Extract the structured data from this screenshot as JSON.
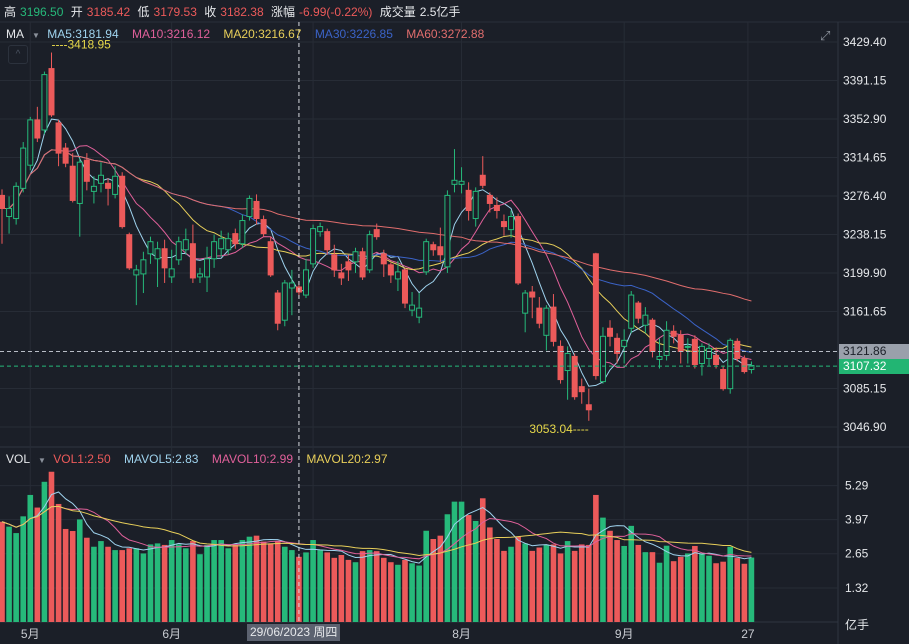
{
  "header": {
    "high_label": "高",
    "high": "3196.50",
    "open_label": "开",
    "open": "3185.42",
    "low_label": "低",
    "low": "3179.53",
    "close_label": "收",
    "close": "3182.38",
    "change_label": "涨幅",
    "change": "-6.99(-0.22%)",
    "volume_label": "成交量",
    "volume": "2.5亿手"
  },
  "ma_row": {
    "label": "MA",
    "ma5": "MA5:3181.94",
    "ma10": "MA10:3216.12",
    "ma20": "MA20:3216.67",
    "ma30": "MA30:3226.85",
    "ma60": "MA60:3272.88"
  },
  "vol_row": {
    "label": "VOL",
    "vol1": "VOL1:2.50",
    "mavol5": "MAVOL5:2.83",
    "mavol10": "MAVOL10:2.99",
    "mavol20": "MAVOL20:2.97"
  },
  "colors": {
    "up": "#26b97a",
    "down": "#ec5a5a",
    "ma5": "#9fd3ee",
    "ma10": "#e0609a",
    "ma20": "#e8cf5a",
    "ma30": "#3b63c7",
    "ma60": "#e06d6d",
    "annotation": "#e6d84a"
  },
  "crosshair_date": "29/06/2023 周四",
  "price_tags": {
    "last": "3121.86",
    "current": "3107.32"
  },
  "annotations": {
    "max": "----3418.95",
    "min": "3053.04----"
  },
  "volume_unit": "亿手",
  "chart_data": {
    "type": "candlestick",
    "ohlc_format": [
      "open",
      "high",
      "low",
      "close"
    ],
    "price_ticks": [
      "3429.40",
      "3391.15",
      "3352.90",
      "3314.65",
      "3276.40",
      "3238.15",
      "3199.90",
      "3161.65",
      "3121.86",
      "3085.15",
      "3046.90"
    ],
    "price_axis_ticks": [
      3429.4,
      3391.15,
      3352.9,
      3314.65,
      3276.4,
      3238.15,
      3199.9,
      3161.65,
      3085.15,
      3046.9
    ],
    "price_axis_labels": [
      "3429.40",
      "3391.15",
      "3352.90",
      "3314.65",
      "3276.40",
      "3238.15",
      "3199.90",
      "3161.65",
      "3085.15",
      "3046.90"
    ],
    "volume_axis_ticks": [
      5.29,
      3.97,
      2.65,
      1.32
    ],
    "volume_axis_labels": [
      "5.29",
      "3.97",
      "2.65",
      "1.32"
    ],
    "x_ticks": [
      {
        "label": "5月",
        "index": 4
      },
      {
        "label": "6月",
        "index": 24
      },
      {
        "label": "8月",
        "index": 65
      },
      {
        "label": "9月",
        "index": 88
      },
      {
        "label": "27",
        "index": 105.5
      }
    ],
    "july_gridline_index": 44,
    "crosshair_index": 42,
    "last_price": 3121.86,
    "current_price": 3107.32,
    "max_price": 3418.95,
    "min_price": 3053.04,
    "candles": [
      [
        3277,
        3283,
        3229,
        3264
      ],
      [
        3256,
        3276,
        3239,
        3264
      ],
      [
        3254,
        3290,
        3248,
        3286
      ],
      [
        3284,
        3330,
        3280,
        3324
      ],
      [
        3307,
        3355,
        3302,
        3352
      ],
      [
        3352,
        3365,
        3330,
        3334
      ],
      [
        3342,
        3400,
        3338,
        3397
      ],
      [
        3403,
        3418.95,
        3355,
        3357
      ],
      [
        3349,
        3352,
        3306,
        3319
      ],
      [
        3324,
        3329,
        3305,
        3309
      ],
      [
        3306,
        3319,
        3270,
        3272
      ],
      [
        3269,
        3314,
        3236,
        3310
      ],
      [
        3312,
        3319,
        3282,
        3291
      ],
      [
        3281,
        3296,
        3269,
        3286
      ],
      [
        3289,
        3310,
        3280,
        3297
      ],
      [
        3289,
        3294,
        3267,
        3284
      ],
      [
        3278,
        3306,
        3274,
        3296
      ],
      [
        3296,
        3300,
        3244,
        3246
      ],
      [
        3238,
        3240,
        3203,
        3205
      ],
      [
        3198,
        3208,
        3168,
        3203
      ],
      [
        3199,
        3221,
        3180,
        3213
      ],
      [
        3219,
        3236,
        3209,
        3231
      ],
      [
        3214,
        3231,
        3186,
        3224
      ],
      [
        3224,
        3233,
        3190,
        3205
      ],
      [
        3196,
        3223,
        3190,
        3204
      ],
      [
        3213,
        3236,
        3208,
        3231
      ],
      [
        3223,
        3244,
        3218,
        3233
      ],
      [
        3229,
        3248,
        3190,
        3195
      ],
      [
        3196,
        3205,
        3190,
        3199
      ],
      [
        3196,
        3226,
        3181,
        3214
      ],
      [
        3214,
        3238,
        3205,
        3231
      ],
      [
        3224,
        3242,
        3216,
        3234
      ],
      [
        3223,
        3240,
        3218,
        3234
      ],
      [
        3239,
        3244,
        3224,
        3229
      ],
      [
        3229,
        3258,
        3225,
        3252
      ],
      [
        3256,
        3277,
        3252,
        3274
      ],
      [
        3271,
        3278,
        3248,
        3254
      ],
      [
        3253,
        3257,
        3236,
        3239
      ],
      [
        3231,
        3236,
        3196,
        3198
      ],
      [
        3180,
        3183,
        3143,
        3150
      ],
      [
        3153,
        3193,
        3147,
        3190
      ],
      [
        3185,
        3203,
        3158,
        3190
      ],
      [
        3186,
        3192,
        3175,
        3181
      ],
      [
        3178,
        3214,
        3175,
        3203
      ],
      [
        3209,
        3248,
        3205,
        3244
      ],
      [
        3241,
        3250,
        3236,
        3246
      ],
      [
        3241,
        3244,
        3218,
        3223
      ],
      [
        3218,
        3228,
        3196,
        3203
      ],
      [
        3200,
        3209,
        3188,
        3195
      ],
      [
        3211,
        3218,
        3192,
        3203
      ],
      [
        3211,
        3225,
        3200,
        3221
      ],
      [
        3221,
        3225,
        3193,
        3196
      ],
      [
        3203,
        3242,
        3200,
        3238
      ],
      [
        3243,
        3249,
        3233,
        3236
      ],
      [
        3219,
        3223,
        3196,
        3209
      ],
      [
        3208,
        3210,
        3190,
        3198
      ],
      [
        3194,
        3212,
        3182,
        3201
      ],
      [
        3203,
        3205,
        3165,
        3170
      ],
      [
        3163,
        3181,
        3157,
        3168
      ],
      [
        3156,
        3180,
        3150,
        3165
      ],
      [
        3201,
        3234,
        3198,
        3231
      ],
      [
        3228,
        3231,
        3217,
        3223
      ],
      [
        3226,
        3245,
        3211,
        3218
      ],
      [
        3206,
        3282,
        3200,
        3277
      ],
      [
        3288,
        3323,
        3280,
        3292
      ],
      [
        3288,
        3305,
        3279,
        3291
      ],
      [
        3282,
        3290,
        3252,
        3262
      ],
      [
        3254,
        3285,
        3246,
        3281
      ],
      [
        3297,
        3316,
        3284,
        3287
      ],
      [
        3277,
        3280,
        3260,
        3269
      ],
      [
        3267,
        3275,
        3254,
        3262
      ],
      [
        3251,
        3258,
        3237,
        3246
      ],
      [
        3243,
        3262,
        3235,
        3256
      ],
      [
        3256,
        3259,
        3188,
        3190
      ],
      [
        3160,
        3183,
        3141,
        3180
      ],
      [
        3181,
        3187,
        3155,
        3176
      ],
      [
        3165,
        3176,
        3145,
        3150
      ],
      [
        3138,
        3168,
        3123,
        3165
      ],
      [
        3166,
        3179,
        3127,
        3132
      ],
      [
        3127,
        3133,
        3090,
        3094
      ],
      [
        3103,
        3127,
        3074,
        3120
      ],
      [
        3117,
        3120,
        3074,
        3077
      ],
      [
        3087,
        3095,
        3070,
        3082
      ],
      [
        3069,
        3085,
        3053.04,
        3064
      ],
      [
        3219,
        3220,
        3094,
        3098
      ],
      [
        3092,
        3146,
        3090,
        3137
      ],
      [
        3145,
        3153,
        3127,
        3137
      ],
      [
        3135,
        3140,
        3110,
        3120
      ],
      [
        3127,
        3144,
        3110,
        3133
      ],
      [
        3145,
        3182,
        3140,
        3178
      ],
      [
        3170,
        3172,
        3150,
        3155
      ],
      [
        3148,
        3166,
        3140,
        3158
      ],
      [
        3153,
        3155,
        3116,
        3122
      ],
      [
        3114,
        3135,
        3105,
        3117
      ],
      [
        3118,
        3152,
        3113,
        3143
      ],
      [
        3142,
        3148,
        3130,
        3137
      ],
      [
        3138,
        3143,
        3110,
        3122
      ],
      [
        3126,
        3135,
        3110,
        3127
      ],
      [
        3134,
        3138,
        3105,
        3109
      ],
      [
        3110,
        3130,
        3098,
        3127
      ],
      [
        3115,
        3130,
        3108,
        3125
      ],
      [
        3118,
        3126,
        3105,
        3109
      ],
      [
        3104,
        3108,
        3083,
        3085
      ],
      [
        3085,
        3135,
        3080,
        3133
      ],
      [
        3132,
        3135,
        3112,
        3115
      ],
      [
        3115,
        3118,
        3100,
        3102
      ],
      [
        3104,
        3112,
        3100,
        3108
      ]
    ],
    "volumes": [
      3.89,
      3.7,
      3.45,
      4.1,
      4.93,
      4.44,
      5.44,
      5.83,
      4.58,
      3.61,
      3.53,
      3.98,
      3.27,
      2.92,
      3.14,
      2.92,
      2.79,
      2.79,
      2.86,
      2.86,
      2.66,
      3.01,
      3.05,
      2.99,
      3.18,
      3.01,
      2.86,
      3.14,
      2.63,
      2.99,
      3.18,
      3.18,
      2.86,
      2.99,
      3.18,
      3.31,
      3.35,
      3.12,
      3.05,
      3.14,
      2.92,
      2.79,
      2.53,
      2.7,
      3.18,
      2.79,
      2.7,
      2.49,
      2.6,
      2.41,
      2.32,
      2.75,
      2.79,
      2.75,
      2.49,
      2.32,
      2.22,
      2.41,
      2.28,
      2.19,
      3.54,
      3.22,
      3.35,
      4.18,
      4.67,
      4.67,
      4.15,
      3.92,
      4.8,
      3.67,
      3.22,
      2.76,
      2.92,
      3.31,
      3.05,
      2.76,
      2.89,
      2.99,
      3.01,
      2.66,
      3.14,
      2.76,
      3.01,
      2.99,
      4.93,
      4.05,
      3.54,
      3.18,
      2.95,
      3.73,
      2.99,
      2.71,
      2.71,
      2.3,
      2.96,
      2.36,
      2.53,
      2.66,
      2.95,
      2.66,
      2.57,
      2.28,
      2.34,
      2.92,
      2.48,
      2.26,
      2.5
    ],
    "moving_averages": [
      5,
      10,
      20,
      30,
      60
    ],
    "volume_moving_averages": [
      5,
      10,
      20
    ]
  }
}
